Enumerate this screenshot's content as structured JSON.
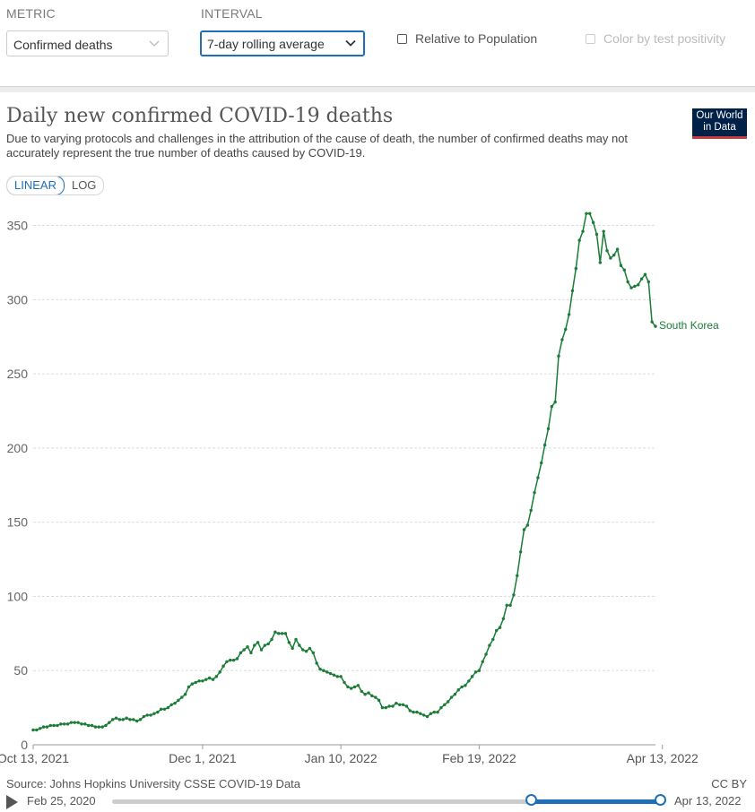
{
  "controls": {
    "metric_label": "METRIC",
    "metric_value": "Confirmed deaths",
    "interval_label": "INTERVAL",
    "interval_value": "7-day rolling average",
    "relative_label": "Relative to Population",
    "color_label": "Color by test positivity"
  },
  "header": {
    "title": "Daily new confirmed COVID-19 deaths",
    "subtitle": "Due to varying protocols and challenges in the attribution of the cause of death, the number of confirmed deaths may not accurately represent the true number of deaths caused by COVID-19.",
    "logo": "Our World in Data"
  },
  "scale": {
    "linear": "LINEAR",
    "log": "LOG"
  },
  "colors": {
    "series": "#1a7c36",
    "grid": "#dddddd",
    "accent": "#1d6fb8"
  },
  "chart_data": {
    "type": "line",
    "title": "Daily new confirmed COVID-19 deaths",
    "xlabel": "",
    "ylabel": "",
    "ylim": [
      0,
      360
    ],
    "yticks": [
      0,
      50,
      100,
      150,
      200,
      250,
      300,
      350
    ],
    "xticks": [
      {
        "label": "Oct 13, 2021",
        "day": 0
      },
      {
        "label": "Dec 1, 2021",
        "day": 49
      },
      {
        "label": "Jan 10, 2022",
        "day": 89
      },
      {
        "label": "Feb 19, 2022",
        "day": 129
      },
      {
        "label": "Apr 13, 2022",
        "day": 182
      }
    ],
    "x_start": "Oct 13, 2021",
    "x_end": "Apr 13, 2022",
    "series": [
      {
        "name": "South Korea",
        "values": [
          10,
          10,
          11,
          12,
          12,
          13,
          13,
          13,
          14,
          14,
          14,
          15,
          15,
          15,
          14,
          14,
          13,
          13,
          12,
          12,
          12,
          13,
          15,
          17,
          18,
          17,
          17,
          18,
          17,
          17,
          16,
          17,
          19,
          20,
          20,
          21,
          22,
          24,
          24,
          25,
          27,
          28,
          30,
          32,
          34,
          39,
          41,
          42,
          43,
          43,
          44,
          45,
          44,
          46,
          49,
          53,
          56,
          57,
          57,
          58,
          62,
          64,
          66,
          62,
          67,
          69,
          64,
          67,
          68,
          71,
          76,
          75,
          75,
          75,
          69,
          65,
          71,
          67,
          64,
          63,
          65,
          62,
          55,
          51,
          50,
          49,
          48,
          47,
          46,
          46,
          42,
          39,
          38,
          39,
          40,
          36,
          34,
          35,
          33,
          32,
          30,
          25,
          25,
          26,
          26,
          28,
          27,
          27,
          26,
          23,
          22,
          22,
          21,
          20,
          19,
          21,
          22,
          22,
          25,
          27,
          29,
          32,
          34,
          37,
          39,
          40,
          43,
          46,
          49,
          50,
          56,
          61,
          67,
          71,
          77,
          79,
          85,
          94,
          94,
          101,
          114,
          130,
          145,
          148,
          158,
          170,
          180,
          190,
          202,
          213,
          228,
          231,
          262,
          273,
          280,
          290,
          306,
          321,
          340,
          346,
          358,
          358,
          352,
          344,
          325,
          346,
          333,
          328,
          330,
          334,
          323,
          320,
          312,
          308,
          309,
          310,
          314,
          317,
          312,
          285,
          282
        ]
      }
    ]
  },
  "footer": {
    "source": "Source: Johns Hopkins University CSSE COVID-19 Data",
    "license": "CC BY",
    "range_start": "Feb 25, 2020",
    "range_end": "Apr 13, 2022"
  }
}
